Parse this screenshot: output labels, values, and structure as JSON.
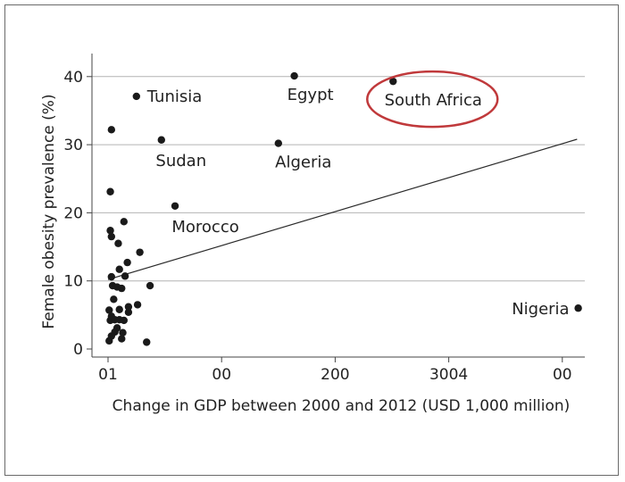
{
  "chart_data": {
    "type": "scatter",
    "title": "",
    "xlabel": "Change in GDP between 2000 and 2012 (USD 1,000 million)",
    "ylabel": "Female obesity prevalence (%)",
    "xlim": [
      -5,
      420
    ],
    "ylim": [
      0,
      40
    ],
    "x_ticks": [
      {
        "value": 0,
        "label": "01"
      },
      {
        "value": 100,
        "label": "00"
      },
      {
        "value": 200,
        "label": "200"
      },
      {
        "value": 300,
        "label": "3004"
      },
      {
        "value": 400,
        "label": "00"
      }
    ],
    "y_ticks": [
      {
        "value": 0,
        "label": "0"
      },
      {
        "value": 10,
        "label": "10"
      },
      {
        "value": 20,
        "label": "20"
      },
      {
        "value": 30,
        "label": "30"
      },
      {
        "value": 40,
        "label": "40"
      }
    ],
    "grid": {
      "horizontal": true,
      "vertical": false
    },
    "trendline": {
      "from": [
        0,
        10.2
      ],
      "to": [
        413,
        30.8
      ]
    },
    "labeled_points": [
      {
        "name": "Tunisia",
        "x": 25,
        "y": 37.1
      },
      {
        "name": "Egypt",
        "x": 164,
        "y": 40.1
      },
      {
        "name": "South Africa",
        "x": 251,
        "y": 39.3
      },
      {
        "name": "Sudan",
        "x": 47,
        "y": 30.7
      },
      {
        "name": "Algeria",
        "x": 150,
        "y": 30.2
      },
      {
        "name": "Morocco",
        "x": 59,
        "y": 21.0
      },
      {
        "name": "Nigeria",
        "x": 414,
        "y": 6.0
      }
    ],
    "unlabeled_points": [
      {
        "x": 3,
        "y": 32.2
      },
      {
        "x": 2,
        "y": 23.1
      },
      {
        "x": 2,
        "y": 17.4
      },
      {
        "x": 3,
        "y": 16.5
      },
      {
        "x": 9,
        "y": 15.5
      },
      {
        "x": 14,
        "y": 18.7
      },
      {
        "x": 28,
        "y": 14.2
      },
      {
        "x": 17,
        "y": 12.7
      },
      {
        "x": 10,
        "y": 11.7
      },
      {
        "x": 3,
        "y": 10.6
      },
      {
        "x": 15,
        "y": 10.7
      },
      {
        "x": 4,
        "y": 9.3
      },
      {
        "x": 8,
        "y": 9.1
      },
      {
        "x": 12,
        "y": 8.9
      },
      {
        "x": 37,
        "y": 9.3
      },
      {
        "x": 5,
        "y": 7.3
      },
      {
        "x": 26,
        "y": 6.5
      },
      {
        "x": 18,
        "y": 6.2
      },
      {
        "x": 1,
        "y": 5.7
      },
      {
        "x": 10,
        "y": 5.8
      },
      {
        "x": 18,
        "y": 5.4
      },
      {
        "x": 3,
        "y": 4.8
      },
      {
        "x": 2,
        "y": 4.2
      },
      {
        "x": 6,
        "y": 4.3
      },
      {
        "x": 10,
        "y": 4.3
      },
      {
        "x": 14,
        "y": 4.2
      },
      {
        "x": 8,
        "y": 3.1
      },
      {
        "x": 6,
        "y": 2.5
      },
      {
        "x": 13,
        "y": 2.4
      },
      {
        "x": 3,
        "y": 1.9
      },
      {
        "x": 12,
        "y": 1.5
      },
      {
        "x": 1,
        "y": 1.2
      },
      {
        "x": 34,
        "y": 1.0
      }
    ],
    "highlight": {
      "name": "South Africa",
      "color": "#c0393b"
    },
    "point_color": "#1a1a1a"
  }
}
